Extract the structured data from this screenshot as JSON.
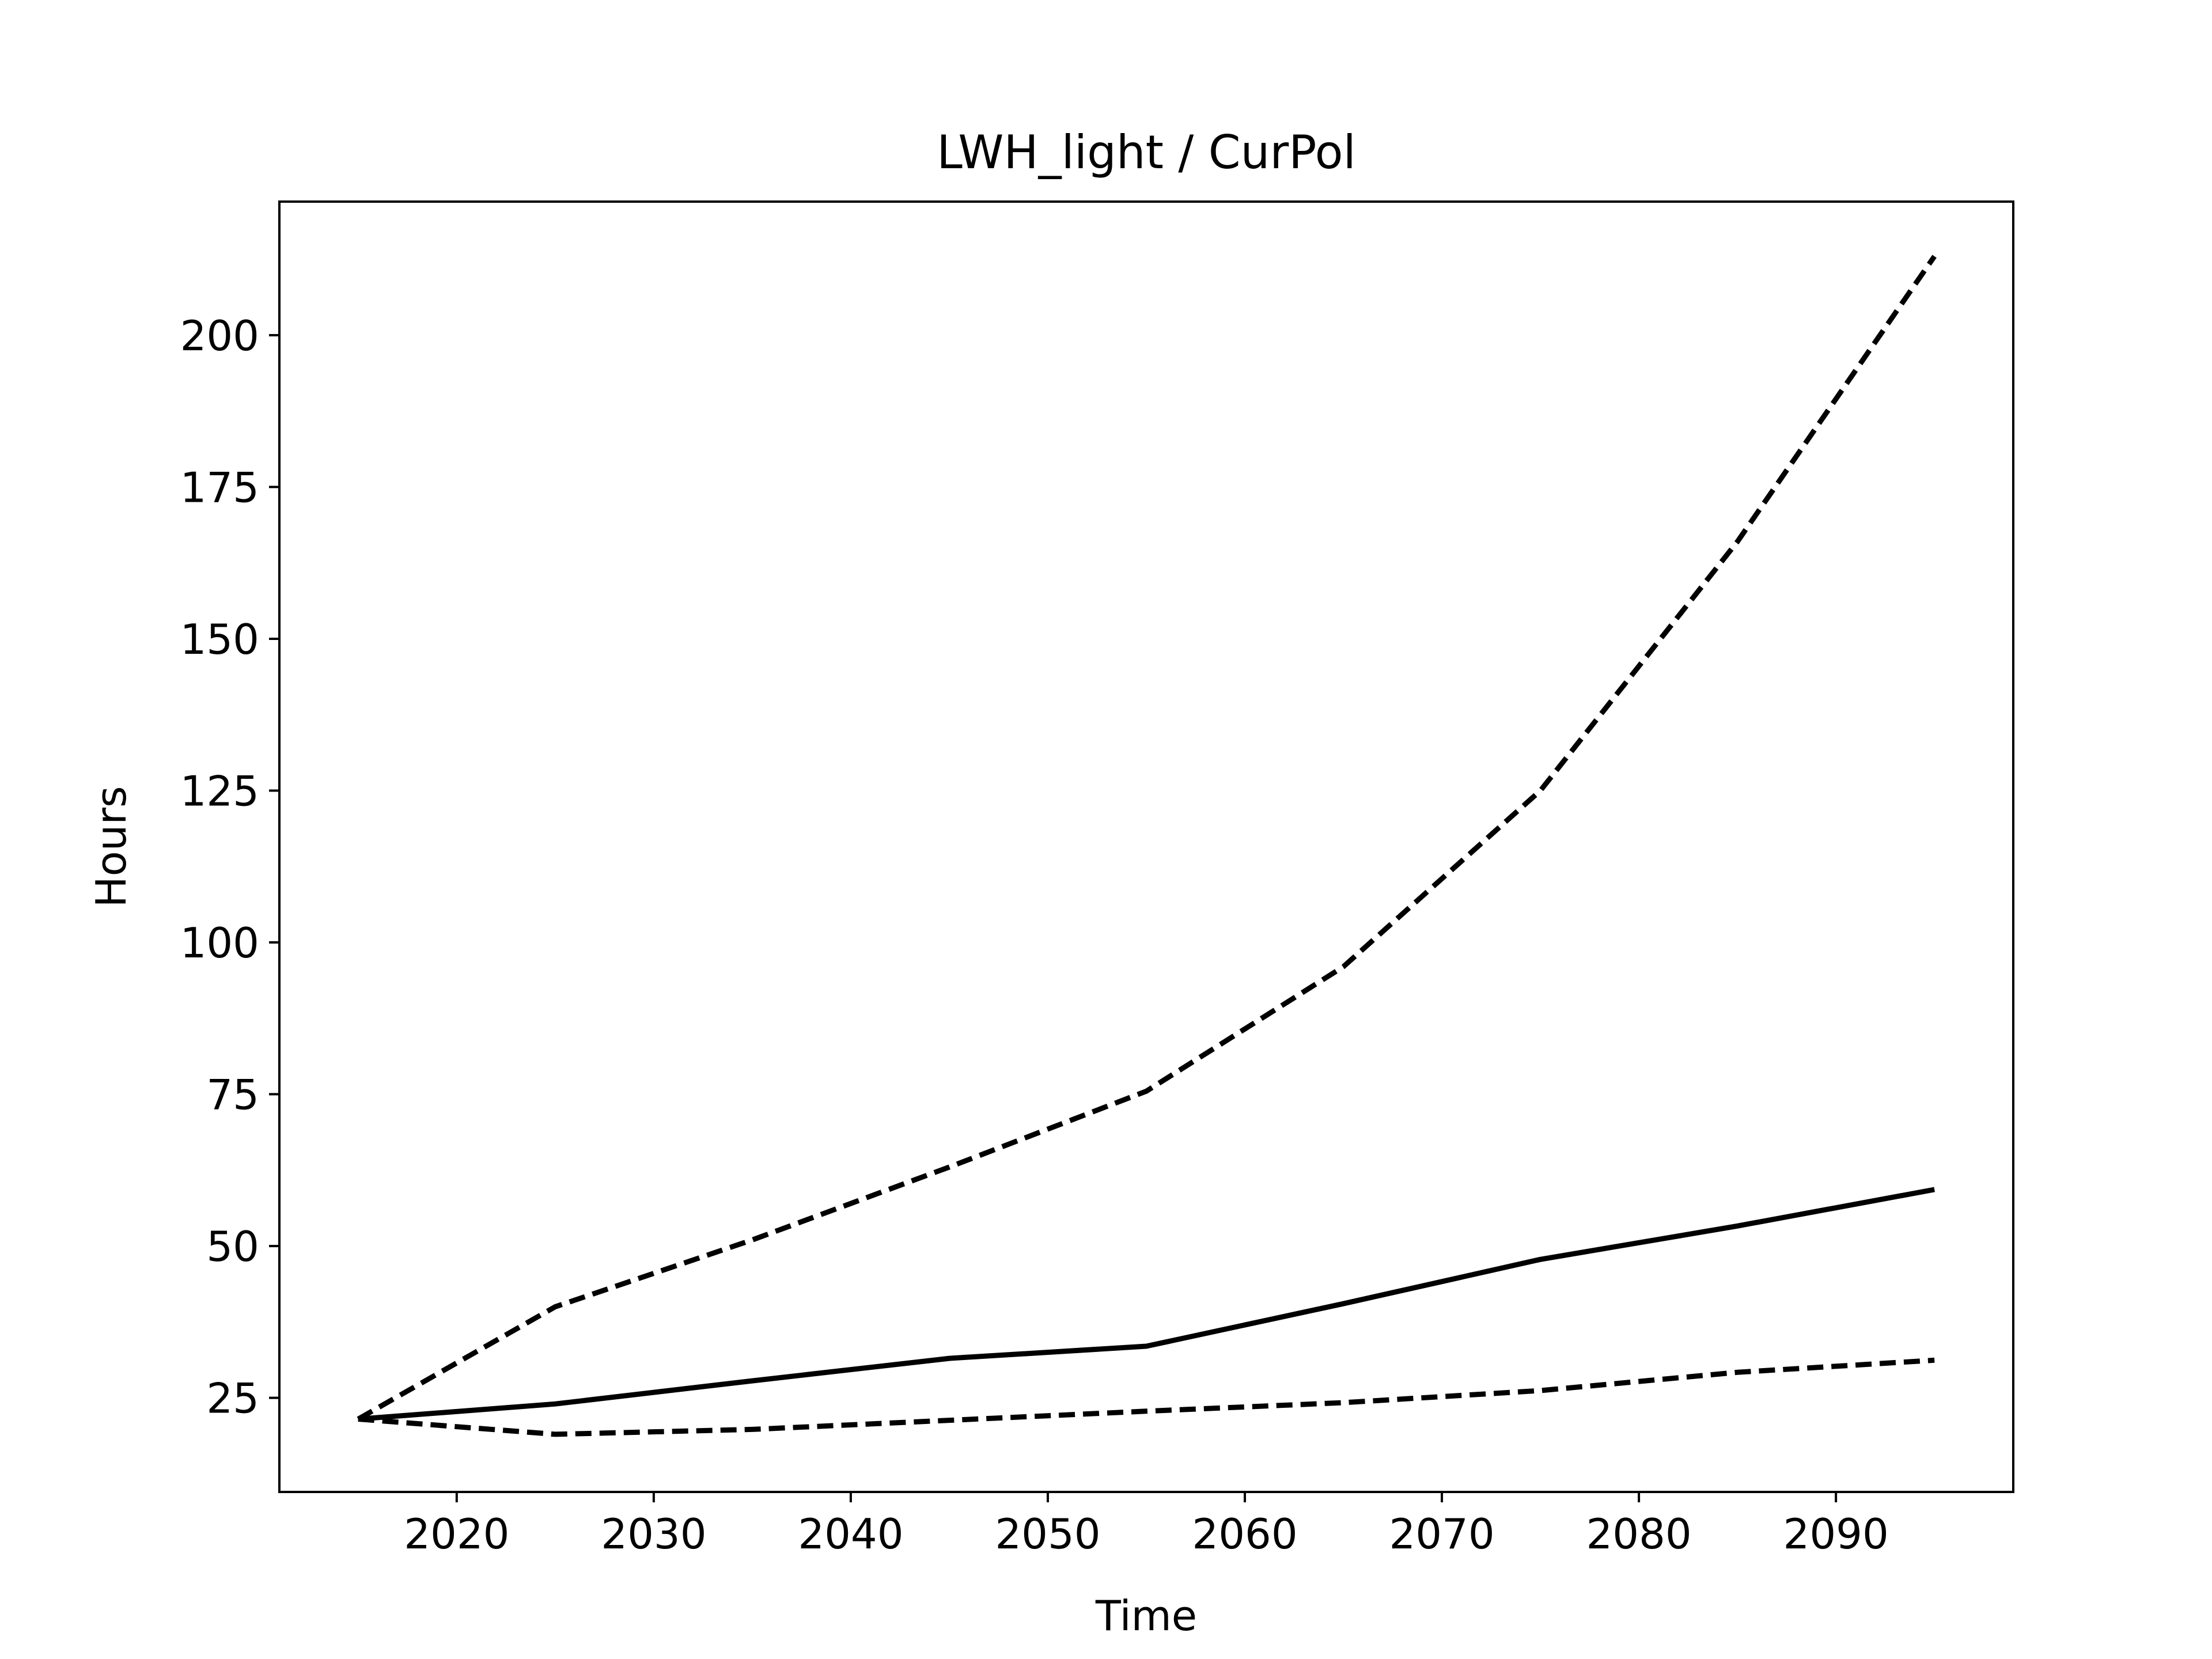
{
  "chart_data": {
    "type": "line",
    "title": "LWH_light / CurPol",
    "xlabel": "Time",
    "ylabel": "Hours",
    "xlim": [
      2011,
      2099
    ],
    "ylim": [
      9.5,
      222
    ],
    "x_ticks": [
      2020,
      2030,
      2040,
      2050,
      2060,
      2070,
      2080,
      2090
    ],
    "y_ticks": [
      25,
      50,
      75,
      100,
      125,
      150,
      175,
      200
    ],
    "grid": false,
    "legend": "none",
    "colors": {
      "line": "#000000",
      "background": "#ffffff"
    },
    "series": [
      {
        "style": "dashed",
        "x": [
          2015,
          2025,
          2035,
          2045,
          2055,
          2065,
          2075,
          2085,
          2095
        ],
        "y": [
          21.5,
          40,
          51,
          63,
          75.5,
          96,
          125,
          166,
          213
        ]
      },
      {
        "style": "solid",
        "x": [
          2015,
          2025,
          2035,
          2045,
          2055,
          2065,
          2075,
          2085,
          2095
        ],
        "y": [
          21.5,
          24,
          27.8,
          31.5,
          33.5,
          40.5,
          47.8,
          53.3,
          59.3
        ]
      },
      {
        "style": "dashed",
        "x": [
          2015,
          2025,
          2035,
          2045,
          2055,
          2065,
          2075,
          2085,
          2095
        ],
        "y": [
          21.5,
          19,
          19.8,
          21.3,
          22.8,
          24.2,
          26.2,
          29.2,
          31.2
        ]
      }
    ]
  }
}
